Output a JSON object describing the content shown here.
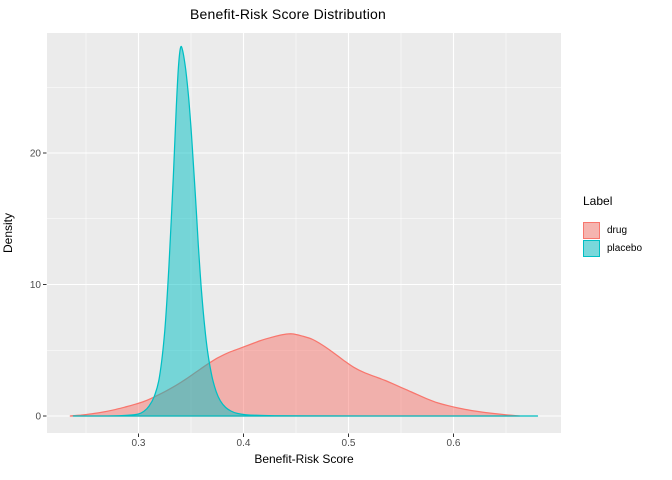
{
  "title": "Benefit-Risk Score Distribution",
  "axes": {
    "xlabel": "Benefit-Risk Score",
    "ylabel": "Density",
    "xticks": [
      {
        "value": 0.3,
        "label": "0.3"
      },
      {
        "value": 0.4,
        "label": "0.4"
      },
      {
        "value": 0.5,
        "label": "0.5"
      },
      {
        "value": 0.6,
        "label": "0.6"
      }
    ],
    "yticks": [
      {
        "value": 0,
        "label": "0"
      },
      {
        "value": 10,
        "label": "10"
      },
      {
        "value": 20,
        "label": "20"
      }
    ]
  },
  "legend": {
    "title": "Label",
    "items": [
      {
        "label": "drug",
        "color": "#F8766D",
        "key_fill": "#F5B4AF"
      },
      {
        "label": "placebo",
        "color": "#00BFC4",
        "key_fill": "#79D8DB"
      }
    ]
  },
  "style": {
    "panel_bg": "#EBEBEB",
    "grid_color": "#FFFFFF",
    "tick_mark_color": "#333333",
    "tick_label_color": "#4D4D4D",
    "fill_alpha": 0.5
  },
  "chart_data": {
    "type": "area",
    "subtype": "density",
    "title": "Benefit-Risk Score Distribution",
    "xlabel": "Benefit-Risk Score",
    "ylabel": "Density",
    "xlim": [
      0.213,
      0.702
    ],
    "ylim": [
      0,
      29.1
    ],
    "x_major_gridlines": [
      0.3,
      0.4,
      0.5,
      0.6
    ],
    "x_minor_gridlines": [
      0.25,
      0.35,
      0.45,
      0.55,
      0.65
    ],
    "y_major_gridlines": [
      0,
      10,
      20
    ],
    "y_minor_gridlines": [
      5,
      15,
      25
    ],
    "grid": "on",
    "legend_position": "right",
    "series": [
      {
        "name": "drug",
        "color": "#F8766D",
        "peak_x": 0.44,
        "peak_density": 6.25,
        "points": [
          [
            0.235,
            0
          ],
          [
            0.245,
            0.07
          ],
          [
            0.255,
            0.16
          ],
          [
            0.265,
            0.28
          ],
          [
            0.275,
            0.44
          ],
          [
            0.285,
            0.63
          ],
          [
            0.295,
            0.85
          ],
          [
            0.305,
            1.1
          ],
          [
            0.315,
            1.45
          ],
          [
            0.325,
            1.85
          ],
          [
            0.335,
            2.3
          ],
          [
            0.345,
            2.8
          ],
          [
            0.355,
            3.35
          ],
          [
            0.365,
            3.9
          ],
          [
            0.375,
            4.4
          ],
          [
            0.385,
            4.8
          ],
          [
            0.395,
            5.1
          ],
          [
            0.405,
            5.4
          ],
          [
            0.415,
            5.7
          ],
          [
            0.425,
            5.95
          ],
          [
            0.435,
            6.15
          ],
          [
            0.44,
            6.22
          ],
          [
            0.445,
            6.25
          ],
          [
            0.45,
            6.2
          ],
          [
            0.455,
            6.1
          ],
          [
            0.465,
            5.85
          ],
          [
            0.475,
            5.4
          ],
          [
            0.485,
            4.85
          ],
          [
            0.495,
            4.25
          ],
          [
            0.505,
            3.7
          ],
          [
            0.515,
            3.3
          ],
          [
            0.525,
            3.0
          ],
          [
            0.535,
            2.7
          ],
          [
            0.545,
            2.35
          ],
          [
            0.555,
            2.0
          ],
          [
            0.565,
            1.65
          ],
          [
            0.575,
            1.3
          ],
          [
            0.585,
            1.0
          ],
          [
            0.595,
            0.78
          ],
          [
            0.605,
            0.6
          ],
          [
            0.615,
            0.45
          ],
          [
            0.625,
            0.33
          ],
          [
            0.635,
            0.22
          ],
          [
            0.645,
            0.13
          ],
          [
            0.655,
            0.05
          ],
          [
            0.663,
            0
          ]
        ]
      },
      {
        "name": "placebo",
        "color": "#00BFC4",
        "peak_x": 0.34,
        "peak_density": 28,
        "points": [
          [
            0.238,
            0
          ],
          [
            0.27,
            0
          ],
          [
            0.29,
            0.05
          ],
          [
            0.3,
            0.15
          ],
          [
            0.305,
            0.35
          ],
          [
            0.31,
            0.75
          ],
          [
            0.315,
            1.5
          ],
          [
            0.32,
            3.0
          ],
          [
            0.325,
            6.5
          ],
          [
            0.329,
            11.5
          ],
          [
            0.333,
            18
          ],
          [
            0.336,
            23.5
          ],
          [
            0.338,
            26.5
          ],
          [
            0.34,
            28
          ],
          [
            0.342,
            27.8
          ],
          [
            0.345,
            26.3
          ],
          [
            0.348,
            24
          ],
          [
            0.351,
            20.8
          ],
          [
            0.354,
            17
          ],
          [
            0.357,
            13
          ],
          [
            0.36,
            9.5
          ],
          [
            0.363,
            6.8
          ],
          [
            0.366,
            4.8
          ],
          [
            0.37,
            3.0
          ],
          [
            0.374,
            1.85
          ],
          [
            0.378,
            1.15
          ],
          [
            0.383,
            0.65
          ],
          [
            0.388,
            0.38
          ],
          [
            0.394,
            0.2
          ],
          [
            0.402,
            0.1
          ],
          [
            0.412,
            0.05
          ],
          [
            0.43,
            0.02
          ],
          [
            0.46,
            0.01
          ],
          [
            0.52,
            0
          ],
          [
            0.6,
            0
          ],
          [
            0.68,
            0
          ]
        ]
      }
    ]
  }
}
